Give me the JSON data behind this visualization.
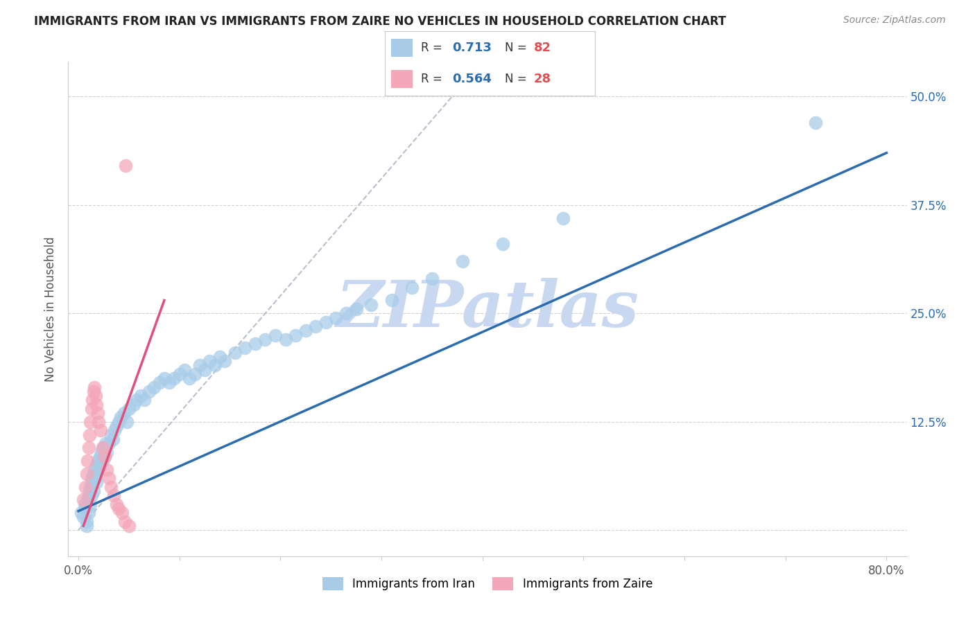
{
  "title": "IMMIGRANTS FROM IRAN VS IMMIGRANTS FROM ZAIRE NO VEHICLES IN HOUSEHOLD CORRELATION CHART",
  "source": "Source: ZipAtlas.com",
  "ylabel": "No Vehicles in Household",
  "legend_iran": "Immigrants from Iran",
  "legend_zaire": "Immigrants from Zaire",
  "R_iran": "0.713",
  "N_iran": "82",
  "R_zaire": "0.564",
  "N_zaire": "28",
  "color_iran": "#a8cce8",
  "color_iran_line": "#2b6cb0",
  "color_zaire": "#f4a7b9",
  "color_zaire_line": "#e0507a",
  "watermark": "ZIPatlas",
  "watermark_color": "#c8d8f0",
  "background_color": "#ffffff",
  "grid_color": "#cccccc",
  "xlim_min": -0.01,
  "xlim_max": 0.82,
  "ylim_min": -0.03,
  "ylim_max": 0.54,
  "iran_x": [
    0.003,
    0.005,
    0.006,
    0.007,
    0.008,
    0.009,
    0.01,
    0.01,
    0.011,
    0.012,
    0.012,
    0.013,
    0.013,
    0.014,
    0.015,
    0.015,
    0.016,
    0.017,
    0.018,
    0.018,
    0.019,
    0.02,
    0.021,
    0.022,
    0.023,
    0.024,
    0.025,
    0.026,
    0.027,
    0.028,
    0.03,
    0.032,
    0.034,
    0.036,
    0.038,
    0.04,
    0.042,
    0.045,
    0.048,
    0.05,
    0.055,
    0.058,
    0.062,
    0.065,
    0.07,
    0.075,
    0.08,
    0.085,
    0.09,
    0.095,
    0.1,
    0.105,
    0.11,
    0.115,
    0.12,
    0.125,
    0.13,
    0.135,
    0.14,
    0.145,
    0.155,
    0.165,
    0.175,
    0.185,
    0.195,
    0.205,
    0.215,
    0.225,
    0.235,
    0.245,
    0.255,
    0.265,
    0.275,
    0.29,
    0.31,
    0.33,
    0.35,
    0.38,
    0.42,
    0.48,
    0.73,
    0.008
  ],
  "iran_y": [
    0.02,
    0.015,
    0.03,
    0.025,
    0.01,
    0.035,
    0.04,
    0.02,
    0.045,
    0.03,
    0.05,
    0.06,
    0.04,
    0.055,
    0.065,
    0.045,
    0.07,
    0.06,
    0.075,
    0.055,
    0.08,
    0.07,
    0.085,
    0.075,
    0.09,
    0.08,
    0.095,
    0.085,
    0.1,
    0.09,
    0.1,
    0.11,
    0.105,
    0.115,
    0.12,
    0.125,
    0.13,
    0.135,
    0.125,
    0.14,
    0.145,
    0.15,
    0.155,
    0.15,
    0.16,
    0.165,
    0.17,
    0.175,
    0.17,
    0.175,
    0.18,
    0.185,
    0.175,
    0.18,
    0.19,
    0.185,
    0.195,
    0.19,
    0.2,
    0.195,
    0.205,
    0.21,
    0.215,
    0.22,
    0.225,
    0.22,
    0.225,
    0.23,
    0.235,
    0.24,
    0.245,
    0.25,
    0.255,
    0.26,
    0.265,
    0.28,
    0.29,
    0.31,
    0.33,
    0.36,
    0.47,
    0.005
  ],
  "zaire_x": [
    0.005,
    0.007,
    0.008,
    0.009,
    0.01,
    0.011,
    0.012,
    0.013,
    0.014,
    0.015,
    0.016,
    0.017,
    0.018,
    0.019,
    0.02,
    0.022,
    0.024,
    0.026,
    0.028,
    0.03,
    0.032,
    0.035,
    0.038,
    0.04,
    0.043,
    0.046,
    0.047,
    0.05
  ],
  "zaire_y": [
    0.035,
    0.05,
    0.065,
    0.08,
    0.095,
    0.11,
    0.125,
    0.14,
    0.15,
    0.16,
    0.165,
    0.155,
    0.145,
    0.135,
    0.125,
    0.115,
    0.095,
    0.085,
    0.07,
    0.06,
    0.05,
    0.04,
    0.03,
    0.025,
    0.02,
    0.01,
    0.42,
    0.005
  ],
  "iran_line_x0": 0.0,
  "iran_line_x1": 0.8,
  "iran_line_y0": 0.022,
  "iran_line_y1": 0.435,
  "zaire_line_x0": 0.005,
  "zaire_line_x1": 0.085,
  "zaire_line_y0": 0.005,
  "zaire_line_y1": 0.265,
  "dash_line_x0": 0.0,
  "dash_line_x1": 0.37,
  "dash_line_y0": 0.0,
  "dash_line_y1": 0.5
}
